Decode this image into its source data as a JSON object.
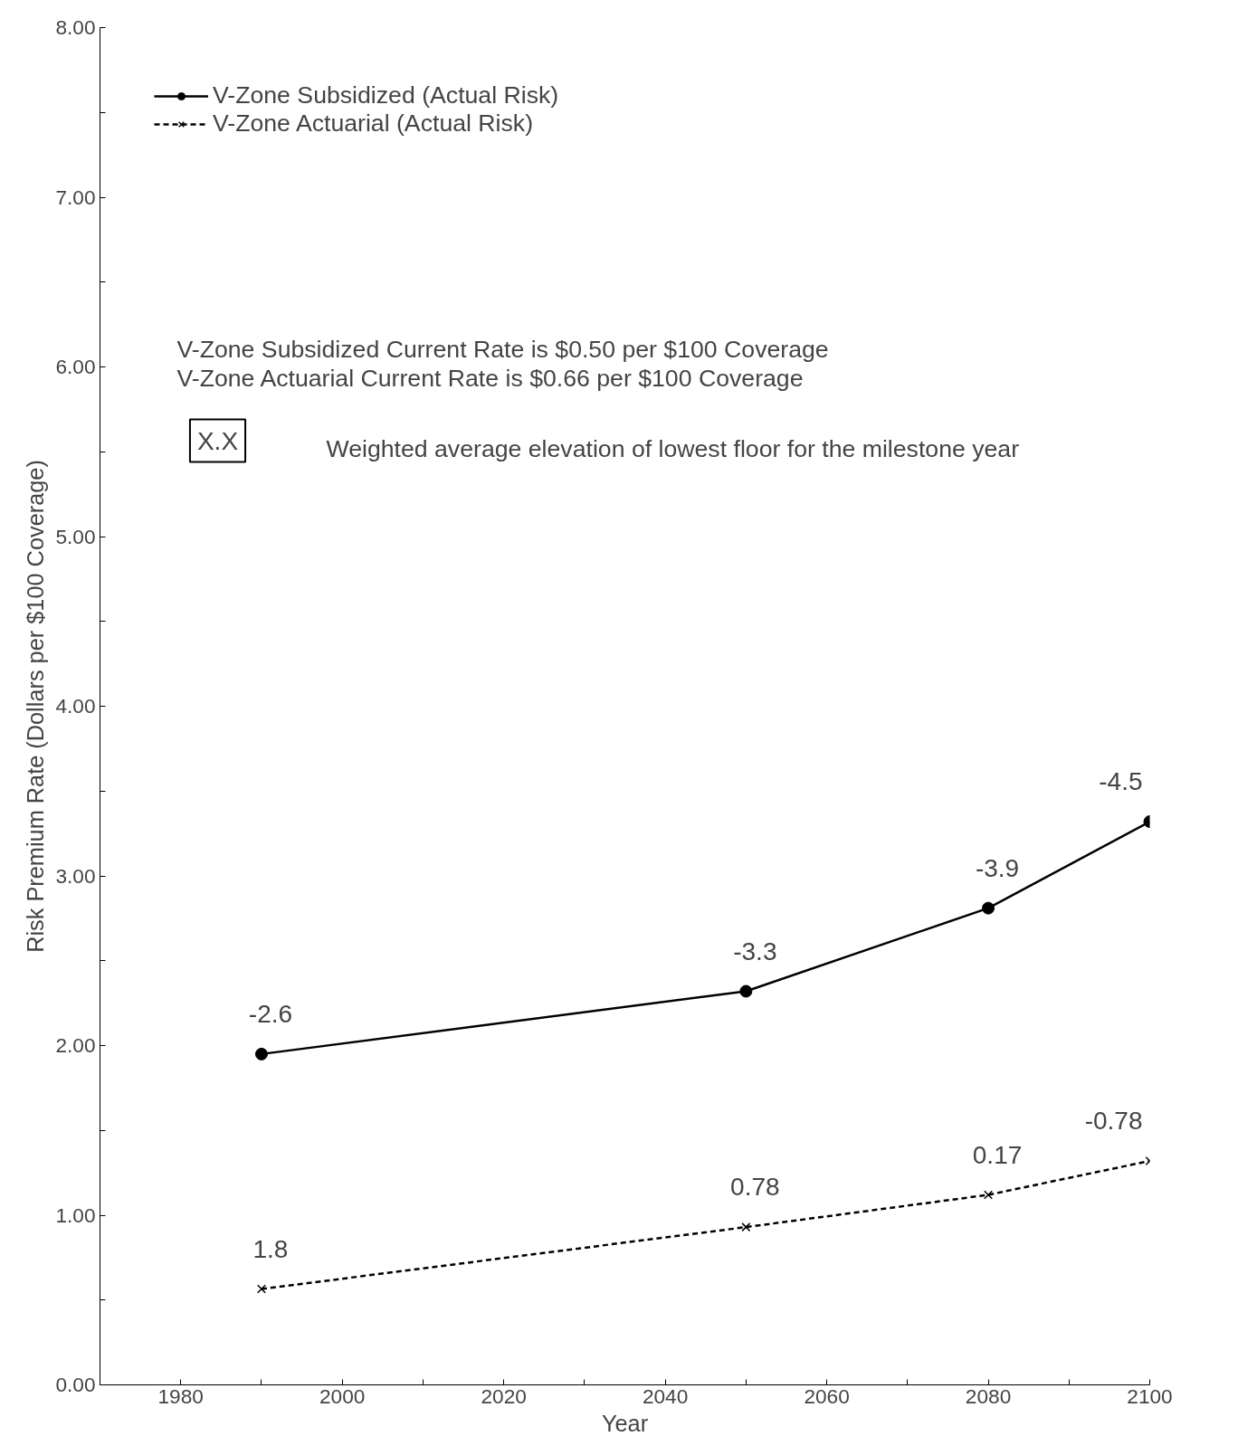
{
  "chart_data": {
    "type": "line",
    "xlabel": "Year",
    "ylabel": "Risk Premium Rate (Dollars per $100 Coverage)",
    "x": [
      1990,
      2050,
      2080,
      2100
    ],
    "series": [
      {
        "name": "V-Zone Subsidized (Actual Risk)",
        "color": "#000000",
        "marker": "circle",
        "line_style": "solid",
        "values": [
          1.95,
          2.32,
          2.81,
          3.32
        ]
      },
      {
        "name": "V-Zone Actuarial (Actual Risk)",
        "color": "#000000",
        "marker": "cross",
        "line_style": "dashed",
        "values": [
          0.565,
          0.93,
          1.12,
          1.32
        ]
      }
    ],
    "annotations": [
      {
        "text": "-2.6",
        "x": 1990,
        "y": 1.95
      },
      {
        "text": "-3.3",
        "x": 2050,
        "y": 2.32
      },
      {
        "text": "-3.9",
        "x": 2080,
        "y": 2.81
      },
      {
        "text": "-4.5",
        "x": 2100,
        "y": 3.32
      },
      {
        "text": "1.8",
        "x": 1990,
        "y": 0.565
      },
      {
        "text": "0.78",
        "x": 2050,
        "y": 0.93
      },
      {
        "text": "0.17",
        "x": 2080,
        "y": 1.12
      },
      {
        "text": "-0.78",
        "x": 2100,
        "y": 1.32
      },
      "V-Zone Subsidized Current Rate is $0.50 per $100 Coverage",
      "V-Zone Actuarial Current Rate is $0.66 per $100 Coverage",
      "X.X",
      "Weighted average elevation of lowest floor for the milestone year"
    ],
    "xlim": [
      1970,
      2100
    ],
    "ylim": [
      0,
      8
    ],
    "xticks": [
      {
        "value": 1970,
        "label": null
      },
      1980,
      {
        "value": 1990,
        "label": null
      },
      2000,
      {
        "value": 2010,
        "label": null
      },
      2020,
      {
        "value": 2030,
        "label": null
      },
      2040,
      {
        "value": 2050,
        "label": null
      },
      2060,
      {
        "value": 2070,
        "label": null
      },
      2080,
      {
        "value": 2090,
        "label": null
      },
      2100
    ],
    "yticks": [
      {
        "value": 0,
        "label": "0.00"
      },
      {
        "value": 0.5,
        "label": null
      },
      {
        "value": 1,
        "label": "1.00"
      },
      {
        "value": 1.5,
        "label": null
      },
      {
        "value": 2,
        "label": "2.00"
      },
      {
        "value": 2.5,
        "label": null
      },
      {
        "value": 3,
        "label": "3.00"
      },
      {
        "value": 3.5,
        "label": null
      },
      {
        "value": 4,
        "label": "4.00"
      },
      {
        "value": 4.5,
        "label": null
      },
      {
        "value": 5,
        "label": "5.00"
      },
      {
        "value": 5.5,
        "label": null
      },
      {
        "value": 6,
        "label": "6.00"
      },
      {
        "value": 6.5,
        "label": null
      },
      {
        "value": 7,
        "label": "7.00"
      },
      {
        "value": 7.5,
        "label": null
      },
      {
        "value": 8,
        "label": "8.00"
      }
    ],
    "grid": false,
    "legend": "top left"
  }
}
